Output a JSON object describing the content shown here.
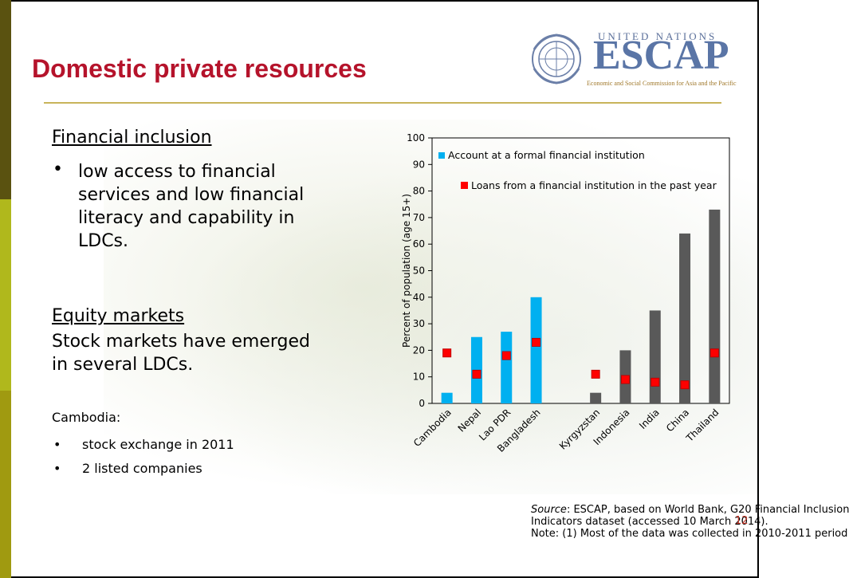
{
  "slide": {
    "title": "Domestic private resources",
    "logo": {
      "line1": "UNITED NATIONS",
      "name": "ESCAP",
      "subtitle": "Economic and Social Commission for Asia and the Pacific"
    },
    "page_number": "12"
  },
  "content": {
    "heading1": "Financial inclusion",
    "bullet1_lines": [
      "low access to financial",
      "services and low financial",
      "literacy and capability in",
      "LDCs."
    ],
    "heading2": "Equity markets",
    "para2_lines": [
      "Stock markets have emerged",
      "in several LDCs."
    ],
    "cambodia_label": "Cambodia:",
    "small_bullets": [
      "stock exchange in 2011",
      "2 listed companies"
    ]
  },
  "source": {
    "italic_prefix": "Source",
    "line1_rest": ": ESCAP, based on World Bank, G20 Financial Inclusion",
    "line2": "Indicators dataset (accessed 10 March 2014).",
    "line3": "Note: (1) Most of the data was collected in 2010-2011 period"
  },
  "chart_data": {
    "type": "bar",
    "categories": [
      "Cambodia",
      "Nepal",
      "Lao PDR",
      "Bangladesh",
      "",
      "Kyrgyzstan",
      "Indonesia",
      "India",
      "China",
      "Thailand"
    ],
    "series": [
      {
        "name": "Account at a formal financial institution",
        "kind": "bar",
        "values": [
          4,
          25,
          27,
          40,
          null,
          4,
          20,
          35,
          64,
          73
        ],
        "colors": [
          "#00b0f0",
          "#00b0f0",
          "#00b0f0",
          "#00b0f0",
          null,
          "#595959",
          "#595959",
          "#595959",
          "#595959",
          "#595959"
        ]
      },
      {
        "name": "Loans from a financial institution in the past year",
        "kind": "marker",
        "values": [
          19,
          11,
          18,
          23,
          null,
          11,
          9,
          8,
          7,
          19
        ],
        "color": "#ff0000"
      }
    ],
    "ylabel": "Percent of  population (age 15+)",
    "ylim": [
      0,
      100
    ],
    "yticks": [
      0,
      10,
      20,
      30,
      40,
      50,
      60,
      70,
      80,
      90,
      100
    ],
    "legend_position": "top-left (inside)",
    "grid": false
  }
}
